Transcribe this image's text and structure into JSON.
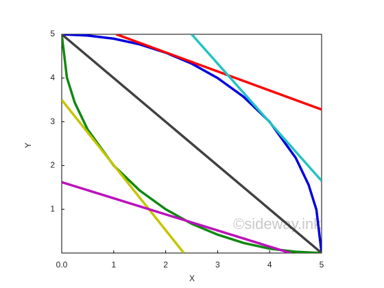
{
  "chart_data": {
    "type": "line",
    "xlabel": "X",
    "ylabel": "Y",
    "watermark": "©sideway.ink",
    "xlim": [
      0,
      5
    ],
    "ylim": [
      0,
      5
    ],
    "xticks": [
      {
        "value": 0,
        "label": "0.0"
      },
      1,
      2,
      3,
      4,
      5
    ],
    "yticks": [
      1,
      2,
      3,
      4,
      5
    ],
    "series": [
      {
        "color": "#0000dd",
        "x": [
          0,
          0.5,
          1,
          1.5,
          2,
          2.5,
          3,
          3.5,
          4,
          4.5,
          4.75,
          4.9,
          5
        ],
        "values": [
          5,
          4.97,
          4.9,
          4.77,
          4.58,
          4.33,
          4,
          3.57,
          3,
          2.18,
          1.56,
          0.99,
          0
        ]
      },
      {
        "color": "#118811",
        "x": [
          0,
          0.1,
          0.25,
          0.5,
          1,
          1.5,
          2,
          2.5,
          3,
          3.5,
          4,
          4.5,
          5
        ],
        "values": [
          5,
          4.01,
          3.44,
          2.82,
          2,
          1.43,
          1,
          0.67,
          0.42,
          0.23,
          0.1,
          0.03,
          0
        ]
      },
      {
        "color": "#404040",
        "x": [
          0,
          5
        ],
        "values": [
          5,
          0
        ]
      },
      {
        "color": "#ff0000",
        "x": [
          1.05,
          5
        ],
        "values": [
          5,
          3.28
        ]
      },
      {
        "color": "#22c3c3",
        "x": [
          2.5,
          5
        ],
        "values": [
          5,
          1.65
        ]
      },
      {
        "color": "#c4c400",
        "x": [
          0,
          2.35
        ],
        "values": [
          3.5,
          0
        ]
      },
      {
        "color": "#bb11bb",
        "x": [
          0,
          4.4
        ],
        "values": [
          1.62,
          0
        ]
      }
    ]
  }
}
